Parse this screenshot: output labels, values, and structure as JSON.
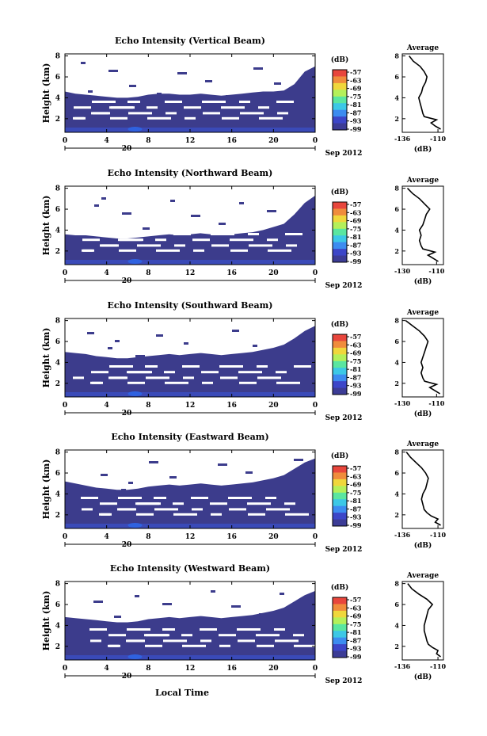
{
  "chart_data": {
    "type": "heatmap",
    "xlabel": "Local Time",
    "x_ticks": [
      "0",
      "4",
      "8",
      "12",
      "16",
      "20",
      "0"
    ],
    "date_label": "20",
    "month_label": "Sep 2012",
    "ylabel": "Height (km)",
    "y_ticks": [
      "2",
      "4",
      "6",
      "8"
    ],
    "ylim": [
      0.7,
      8.2
    ],
    "colorbar": {
      "unit": "(dB)",
      "labels": [
        "-57",
        "-63",
        "-69",
        "-75",
        "-81",
        "-87",
        "-93",
        "-99"
      ],
      "colors": [
        "#e8463c",
        "#f08c3c",
        "#f0d73c",
        "#b4f05a",
        "#5ae6a0",
        "#3cc8e6",
        "#3c8cf0",
        "#3c46c8",
        "#3c3c96"
      ]
    },
    "echo_color": "#3c3c8c",
    "panels": [
      {
        "title": "Echo Intensity (Vertical Beam)",
        "echo_top_km": [
          4.6,
          4.4,
          4.3,
          4.2,
          4.1,
          4.0,
          4.0,
          4.1,
          4.3,
          4.4,
          4.4,
          4.3,
          4.3,
          4.4,
          4.3,
          4.2,
          4.3,
          4.4,
          4.5,
          4.6,
          4.6,
          4.7,
          5.3,
          6.5,
          7.0
        ],
        "average": {
          "title": "Average",
          "xlabel": "(dB)",
          "x_ticks": [
            "-136",
            "-110"
          ],
          "xlim": [
            -136,
            -106
          ],
          "height_km": [
            1.0,
            1.3,
            1.6,
            1.9,
            2.2,
            2.5,
            3.0,
            3.5,
            4.0,
            4.5,
            5.0,
            5.5,
            6.0,
            6.5,
            7.0,
            7.5,
            8.0
          ],
          "db": [
            -108,
            -112,
            -115,
            -111,
            -120,
            -121,
            -122,
            -123,
            -124,
            -122,
            -121,
            -119,
            -118,
            -120,
            -123,
            -128,
            -131
          ]
        }
      },
      {
        "title": "Echo Intensity (Northward Beam)",
        "echo_top_km": [
          3.6,
          3.5,
          3.5,
          3.4,
          3.3,
          3.2,
          3.2,
          3.3,
          3.4,
          3.5,
          3.6,
          3.5,
          3.6,
          3.7,
          3.6,
          3.5,
          3.6,
          3.7,
          3.8,
          4.0,
          4.3,
          4.6,
          5.5,
          6.6,
          7.3
        ],
        "average": {
          "title": "Average",
          "xlabel": "(dB)",
          "x_ticks": [
            "-130",
            "-110"
          ],
          "xlim": [
            -130,
            -106
          ],
          "height_km": [
            1.0,
            1.3,
            1.6,
            1.9,
            2.2,
            2.5,
            3.0,
            3.5,
            4.0,
            4.5,
            5.0,
            5.5,
            6.0,
            6.5,
            7.0,
            7.5,
            8.0
          ],
          "db": [
            -109,
            -112,
            -115,
            -111,
            -118,
            -119,
            -120,
            -119,
            -120,
            -118,
            -117,
            -116,
            -114,
            -117,
            -120,
            -124,
            -127
          ]
        }
      },
      {
        "title": "Echo Intensity (Southward Beam)",
        "echo_top_km": [
          5.0,
          4.9,
          4.8,
          4.6,
          4.5,
          4.4,
          4.4,
          4.5,
          4.6,
          4.7,
          4.8,
          4.7,
          4.8,
          4.9,
          4.8,
          4.7,
          4.8,
          4.9,
          5.0,
          5.2,
          5.4,
          5.7,
          6.3,
          7.0,
          7.5
        ],
        "average": {
          "title": "Average",
          "xlabel": "(dB)",
          "x_ticks": [
            "-130",
            "-110"
          ],
          "xlim": [
            -130,
            -106
          ],
          "height_km": [
            1.0,
            1.3,
            1.6,
            1.9,
            2.2,
            2.5,
            3.0,
            3.5,
            4.0,
            4.5,
            5.0,
            5.5,
            6.0,
            6.5,
            7.0,
            7.5,
            8.0
          ],
          "db": [
            -108,
            -111,
            -114,
            -110,
            -117,
            -118,
            -119,
            -118,
            -119,
            -118,
            -117,
            -116,
            -115,
            -117,
            -120,
            -124,
            -128
          ]
        }
      },
      {
        "title": "Echo Intensity (Eastward Beam)",
        "echo_top_km": [
          5.2,
          5.0,
          4.8,
          4.6,
          4.5,
          4.4,
          4.4,
          4.5,
          4.7,
          4.8,
          4.9,
          4.8,
          4.9,
          5.0,
          4.9,
          4.8,
          4.9,
          5.0,
          5.1,
          5.3,
          5.5,
          5.8,
          6.4,
          7.0,
          7.4
        ],
        "average": {
          "title": "Average",
          "xlabel": "(dB)",
          "x_ticks": [
            "-136",
            "-110"
          ],
          "xlim": [
            -136,
            -106
          ],
          "height_km": [
            1.0,
            1.3,
            1.6,
            1.9,
            2.2,
            2.5,
            3.0,
            3.5,
            4.0,
            4.5,
            5.0,
            5.5,
            6.0,
            6.5,
            7.0,
            7.5,
            8.0
          ],
          "db": [
            -108,
            -112,
            -110,
            -115,
            -118,
            -120,
            -121,
            -122,
            -121,
            -119,
            -118,
            -117,
            -119,
            -122,
            -126,
            -130,
            -133
          ]
        }
      },
      {
        "title": "Echo Intensity (Westward Beam)",
        "echo_top_km": [
          4.8,
          4.7,
          4.6,
          4.5,
          4.4,
          4.3,
          4.3,
          4.4,
          4.6,
          4.7,
          4.8,
          4.7,
          4.8,
          4.9,
          4.8,
          4.7,
          4.8,
          4.9,
          5.0,
          5.2,
          5.4,
          5.7,
          6.3,
          6.9,
          7.3
        ],
        "average": {
          "title": "Average",
          "xlabel": "(dB)",
          "x_ticks": [
            "-136",
            "-110"
          ],
          "xlim": [
            -136,
            -106
          ],
          "height_km": [
            1.0,
            1.3,
            1.6,
            1.9,
            2.2,
            2.5,
            3.0,
            3.5,
            4.0,
            4.5,
            5.0,
            5.5,
            6.0,
            6.5,
            7.0,
            7.5,
            8.0
          ],
          "db": [
            -108,
            -111,
            -110,
            -114,
            -117,
            -118,
            -119,
            -120,
            -120,
            -119,
            -118,
            -117,
            -114,
            -118,
            -124,
            -129,
            -132
          ]
        }
      }
    ]
  }
}
